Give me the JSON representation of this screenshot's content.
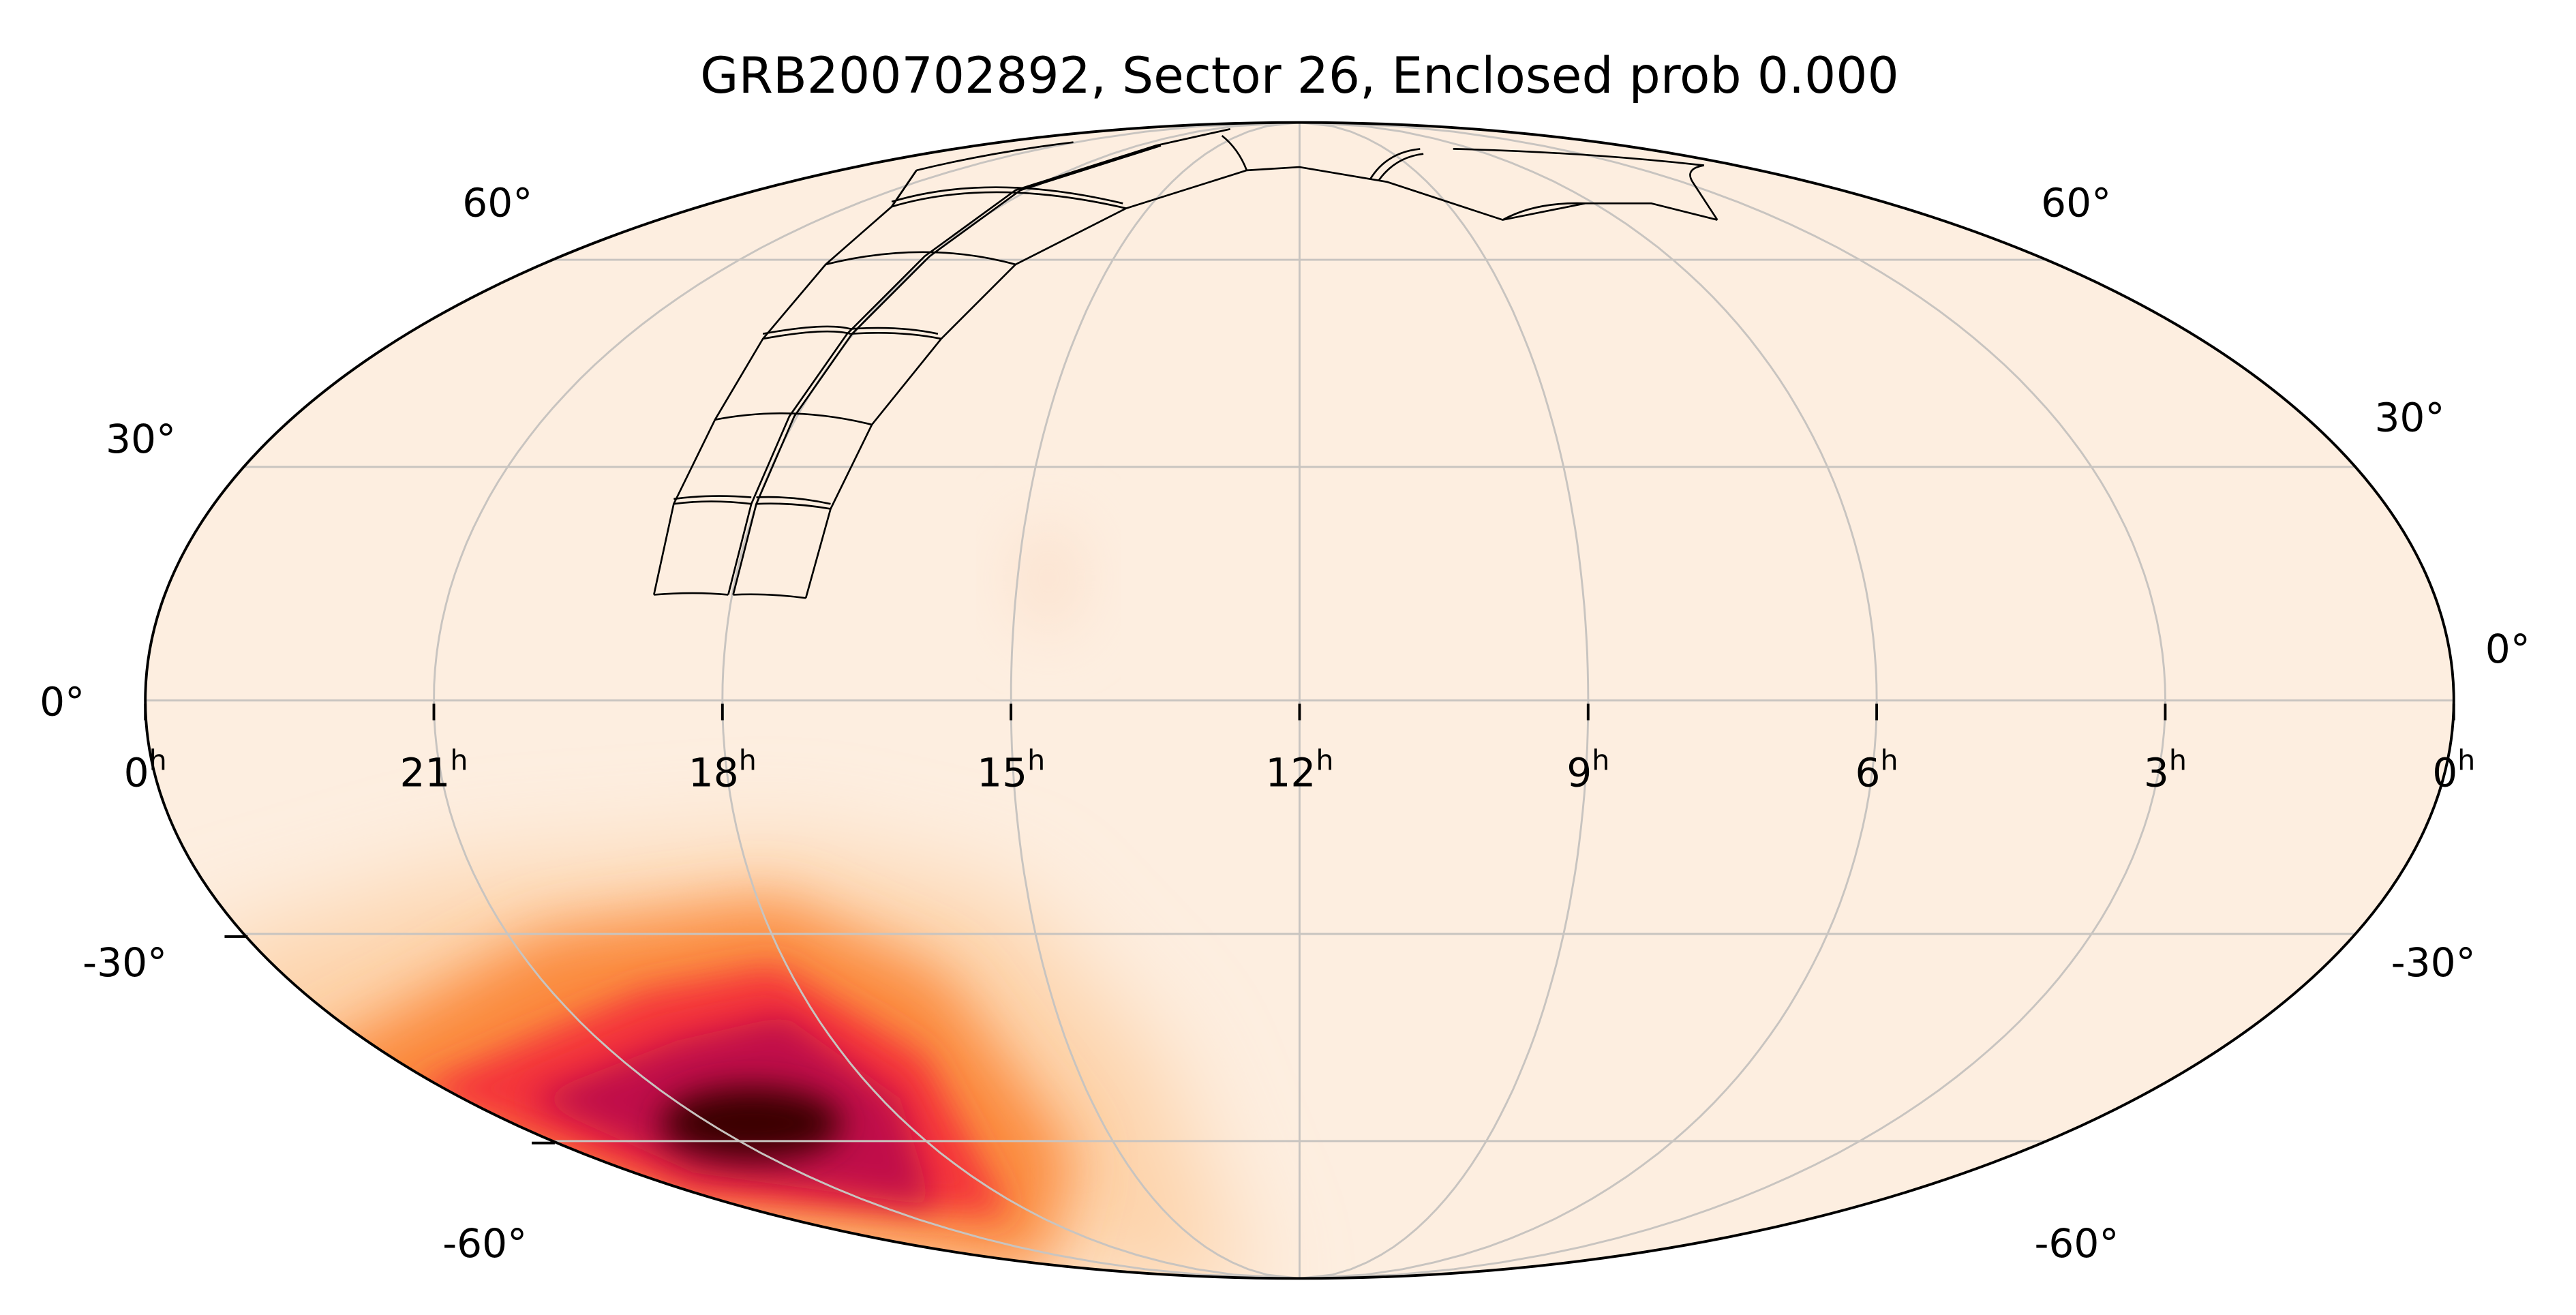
{
  "chart_data": {
    "type": "heatmap",
    "projection": "mollweide",
    "title": "GRB200702892, Sector 26, Enclosed prob 0.000",
    "ra_ticks": [
      {
        "value": 0,
        "label": "0"
      },
      {
        "value": 21,
        "label": "21"
      },
      {
        "value": 18,
        "label": "18"
      },
      {
        "value": 15,
        "label": "15"
      },
      {
        "value": 12,
        "label": "12"
      },
      {
        "value": 9,
        "label": "9"
      },
      {
        "value": 6,
        "label": "6"
      },
      {
        "value": 3,
        "label": "3"
      },
      {
        "value": 0,
        "label": "0"
      }
    ],
    "ra_unit": "h",
    "dec_ticks_left": [
      "60°",
      "30°",
      "0°",
      "-30°",
      "-60°"
    ],
    "dec_ticks_right": [
      "60°",
      "30°",
      "0°",
      "-30°",
      "-60°"
    ],
    "dec_values": [
      60,
      30,
      0,
      -30,
      -60
    ],
    "grid": true,
    "colormap": [
      "#fdeee0",
      "#fdd2a8",
      "#fb8a3c",
      "#f4363a",
      "#c0104a",
      "#3a0005"
    ],
    "probability_peak": {
      "ra_deg": 290,
      "dec_deg": -57
    },
    "enclosed_prob": 0.0,
    "sector": 26
  }
}
